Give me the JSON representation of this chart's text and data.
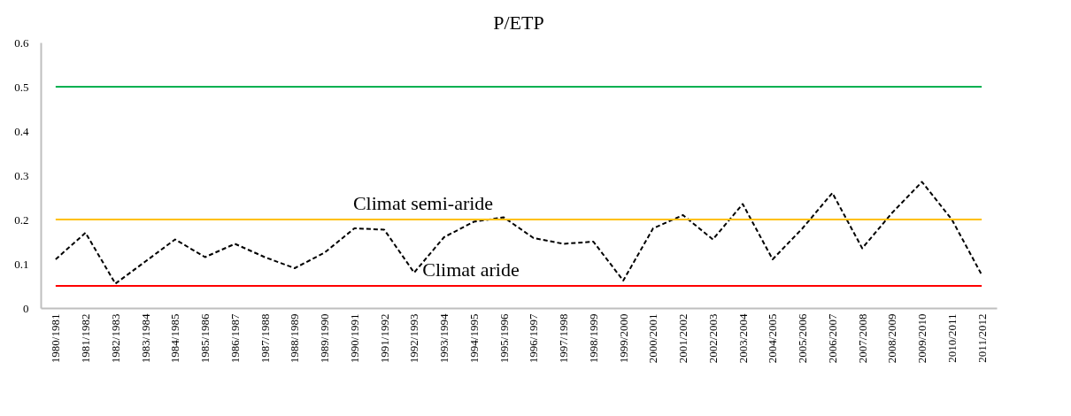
{
  "chart_data": {
    "type": "line",
    "title": "P/ETP",
    "categories": [
      "1980/1981",
      "1981/1982",
      "1982/1983",
      "1983/1984",
      "1984/1985",
      "1985/1986",
      "1986/1987",
      "1987/1988",
      "1988/1989",
      "1989/1990",
      "1990/1991",
      "1991/1992",
      "1992/1993",
      "1993/1994",
      "1994/1995",
      "1995/1996",
      "1996/1997",
      "1997/1998",
      "1998/1999",
      "1999/2000",
      "2000/2001",
      "2001/2002",
      "2002/2003",
      "2003/2004",
      "2004/2005",
      "2005/2006",
      "2006/2007",
      "2007/2008",
      "2008/2009",
      "2009/2010",
      "2010/2011",
      "2011/2012"
    ],
    "series": [
      {
        "color": "#000000",
        "values": [
          0.11,
          0.17,
          0.055,
          0.105,
          0.155,
          0.115,
          0.145,
          0.115,
          0.09,
          0.125,
          0.18,
          0.177,
          0.08,
          0.16,
          0.195,
          0.205,
          0.158,
          0.145,
          0.15,
          0.062,
          0.18,
          0.21,
          0.155,
          0.235,
          0.11,
          0.18,
          0.26,
          0.135,
          0.215,
          0.285,
          0.2,
          0.075
        ]
      }
    ],
    "ylim": [
      0,
      0.6
    ],
    "yticks": [
      0,
      0.1,
      0.2,
      0.3,
      0.4,
      0.5,
      0.6
    ],
    "ref_lines": [
      {
        "axis": "y",
        "value": 0.5,
        "color": "#00b050"
      },
      {
        "axis": "y",
        "value": 0.2,
        "color": "#ffc000",
        "label": "Climat semi-aride"
      },
      {
        "axis": "y",
        "value": 0.05,
        "color": "#ff0000",
        "label": "Climat aride"
      }
    ],
    "grid": false,
    "marker": "none",
    "line_style": "dashed"
  }
}
